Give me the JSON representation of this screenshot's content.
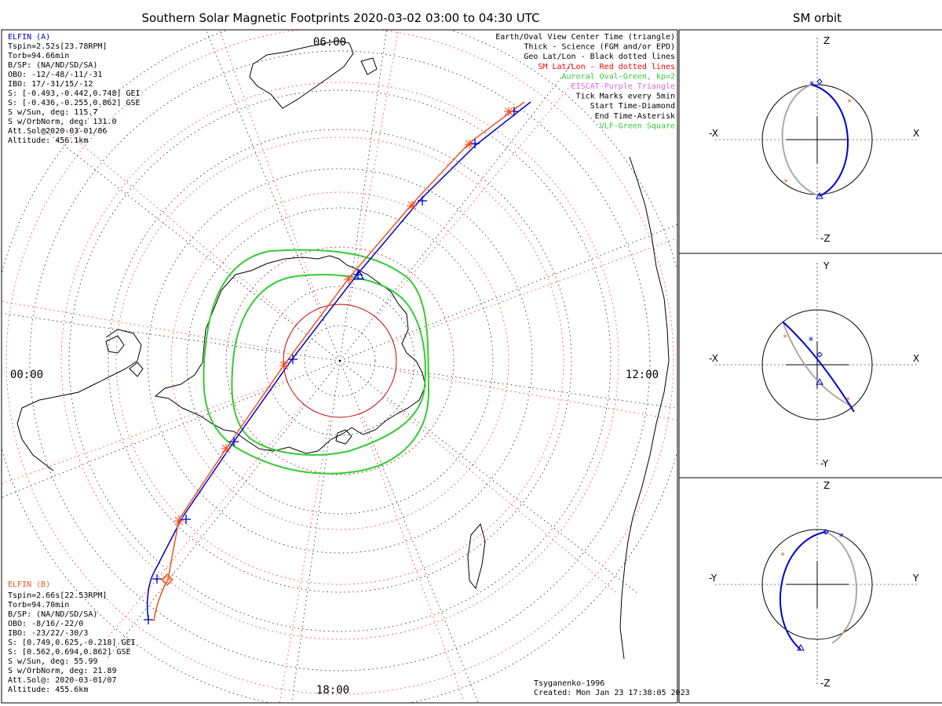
{
  "title": "Southern Solar Magnetic Footprints 2020-03-02 03:00 to 04:30 UTC",
  "orbit_title": "SM orbit",
  "clock_labels": {
    "top": "06:00",
    "left": "00:00",
    "right": "12:00",
    "bottom": "18:00"
  },
  "sat_a": {
    "name": "ELFIN (A)",
    "color": "#0000cc",
    "lines": [
      "Tspin=2.52s[23.78RPM]",
      "Torb=94.66min",
      "B/SP: (NA/ND/SD/SA)",
      "OBO: -12/-48/-11/-31",
      "IBO: 17/-31/15/-12",
      "S: [-0.493,-0.442,0.748] GEI",
      "S: [-0.436,-0.255,0.862] GSE",
      "S w/Sun, deg: 115.7",
      "S w/OrbNorm, deg: 131.0",
      "Att.Sol@2020-03-01/06",
      "Altitude: 456.1km"
    ]
  },
  "sat_b": {
    "name": "ELFIN (B)",
    "color": "#ee5522",
    "lines": [
      "Tspin=2.66s[22.53RPM]",
      "Torb=94.70min",
      "B/SP: (NA/ND/SD/SA)",
      "OBO: -8/16/-22/0",
      "IBO: -23/22/-30/3",
      "S: [0.749,0.625,-0.218] GEI",
      "S: [0.562,0.694,0.862] GSE",
      "S w/Sun, deg: 55.99",
      "S w/OrbNorm, deg: 21.89",
      "Att.Sol@: 2020-03-01/07",
      "Altitude: 455.6km"
    ]
  },
  "legend": [
    {
      "text": "Earth/Oval View Center Time (triangle)",
      "color": "#000000"
    },
    {
      "text": "Thick - Science (FGM and/or EPD)",
      "color": "#000000"
    },
    {
      "text": "Geo Lat/Lon - Black dotted lines",
      "color": "#000000"
    },
    {
      "text": "SM Lat/Lon - Red dotted lines",
      "color": "#ff0000"
    },
    {
      "text": "Auroral Oval-Green, kp=2",
      "color": "#33cc33"
    },
    {
      "text": "EISCAT-Purple Triangle",
      "color": "#dd66dd"
    },
    {
      "text": "Tick Marks every 5min",
      "color": "#000000"
    },
    {
      "text": "Start Time-Diamond",
      "color": "#000000"
    },
    {
      "text": "End Time-Asterisk",
      "color": "#000000"
    },
    {
      "text": "VLF-Green Square",
      "color": "#33cc33"
    }
  ],
  "footer": {
    "model": "Tsyganenko-1996",
    "created": "Created: Mon Jan 23 17:38:05 2023"
  },
  "orbit_panels": [
    {
      "top": "Z",
      "bottom": "-Z",
      "left": "-X",
      "right": "X"
    },
    {
      "top": "Y",
      "bottom": "-Y",
      "left": "-X",
      "right": "X"
    },
    {
      "top": "Z",
      "bottom": "-Z",
      "left": "-Y",
      "right": "Y"
    }
  ]
}
